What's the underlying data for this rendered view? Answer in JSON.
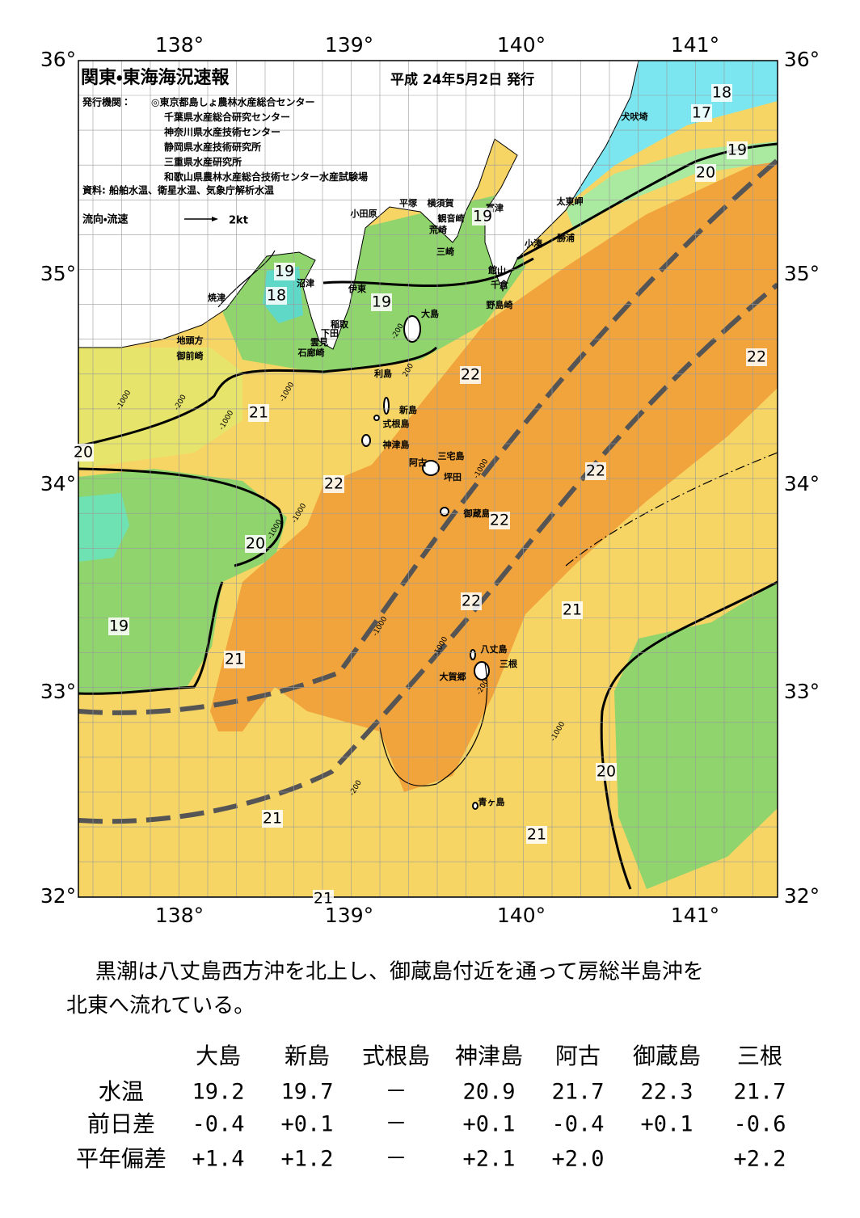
{
  "header": {
    "title": "関東・東海海況速報",
    "date": "平成 24年5月2日 発行",
    "publisher_label": "発行機関：",
    "publishers": [
      "◎東京都島しょ農林水産総合センター",
      "千葉県水産総合研究センター",
      "神奈川県水産技術センター",
      "静岡県水産技術研究所",
      "三重県水産研究所",
      "和歌山県農林水産総合技術センター水産試験場"
    ],
    "source": "資料: 船舶水温、衛星水温、気象庁解析水温",
    "legend": {
      "label": "流向・流速",
      "scale": "2kt"
    }
  },
  "map": {
    "lon_labels": [
      "138°",
      "139°",
      "140°",
      "141°"
    ],
    "lat_labels": [
      "36°",
      "35°",
      "34°",
      "33°",
      "32°"
    ],
    "places": [
      "犬吠埼",
      "太東岬",
      "富津",
      "横須賀",
      "平塚",
      "小田原",
      "観音崎",
      "荒崎",
      "勝浦",
      "小湊",
      "三崎",
      "館山",
      "千倉",
      "沼津",
      "伊東",
      "野島崎",
      "焼津",
      "大島",
      "稲取",
      "下田",
      "雲見",
      "石廊崎",
      "地頭方",
      "御前崎",
      "利島",
      "新島",
      "式根島",
      "神津島",
      "三宅島",
      "阿古",
      "坪田",
      "御蔵島",
      "八丈島",
      "三根",
      "大賀郷",
      "青ヶ島"
    ],
    "temperature_labels": [
      "18",
      "17",
      "19",
      "20",
      "19",
      "19",
      "18",
      "19",
      "22",
      "21",
      "20",
      "22",
      "22",
      "22",
      "22",
      "20",
      "22",
      "21",
      "19",
      "21",
      "20",
      "21",
      "21",
      "21"
    ],
    "depth_labels": [
      "-1000",
      "-200",
      "-1000",
      "-1000",
      "-200",
      "200",
      "-1000",
      "-1000",
      "-1000",
      "-1000",
      "-1000",
      "-1000",
      "-200",
      "-200"
    ]
  },
  "summary": [
    "黒潮は八丈島西方沖を北上し、御蔵島付近を通って房総半島沖を",
    "北東へ流れている。"
  ],
  "table": {
    "columns": [
      "大島",
      "新島",
      "式根島",
      "神津島",
      "阿古",
      "御蔵島",
      "三根"
    ],
    "rows": [
      {
        "label": "水温",
        "values": [
          "19.2",
          "19.7",
          "－",
          "20.9",
          "21.7",
          "22.3",
          "21.7"
        ]
      },
      {
        "label": "前日差",
        "values": [
          "-0.4",
          "+0.1",
          "－",
          "+0.1",
          "-0.4",
          "+0.1",
          "-0.6"
        ]
      },
      {
        "label": "平年偏差",
        "values": [
          "+1.4",
          "+1.2",
          "－",
          "+2.1",
          "+2.0",
          null,
          "+2.2"
        ]
      }
    ]
  }
}
